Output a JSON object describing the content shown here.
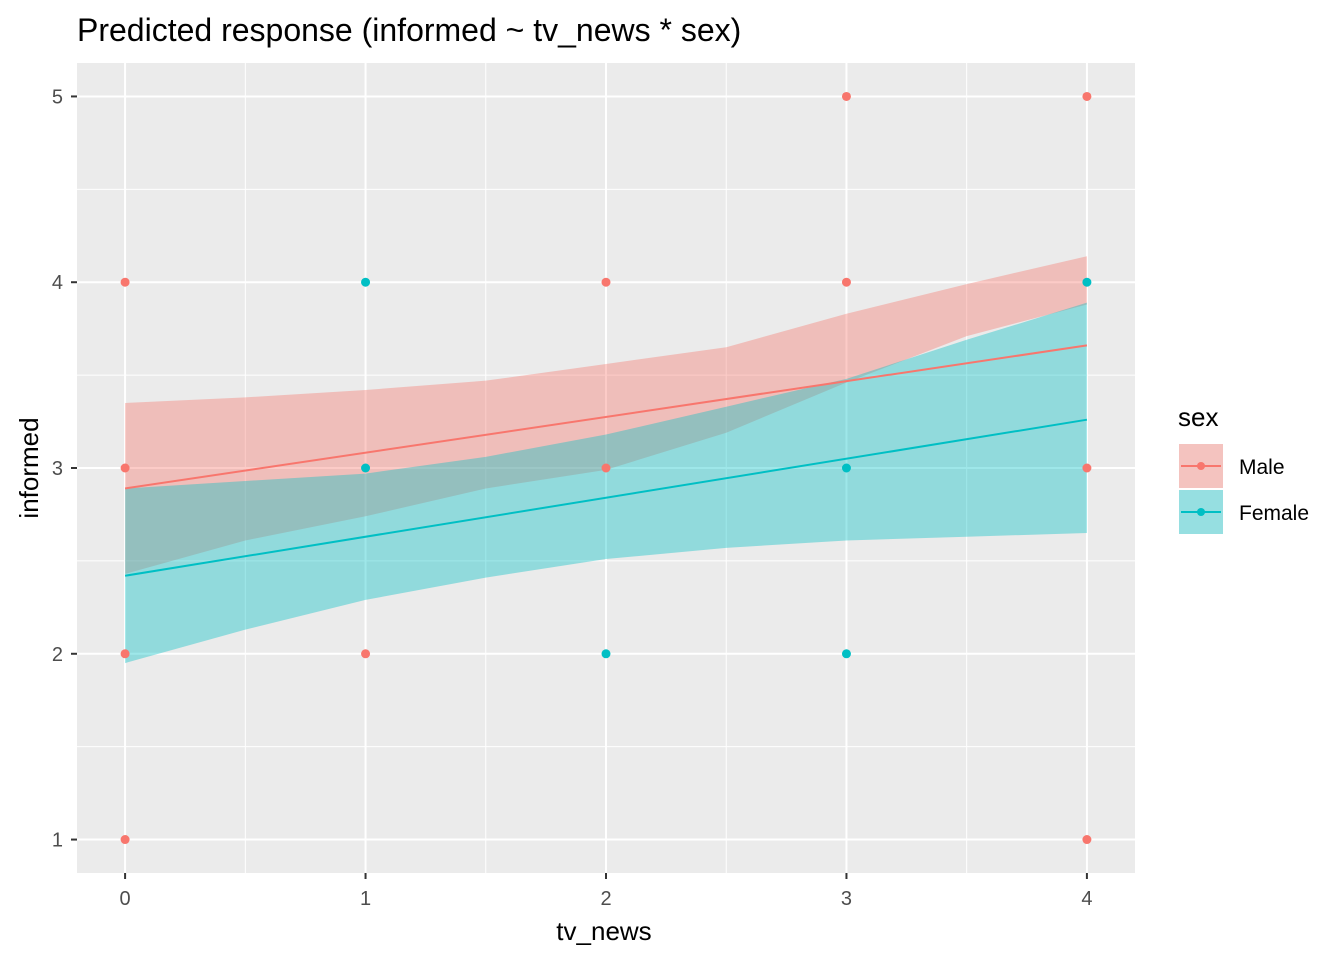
{
  "chart_data": {
    "type": "line",
    "title": "Predicted response (informed ~ tv_news * sex)",
    "xlabel": "tv_news",
    "ylabel": "informed",
    "xlim": [
      -0.2,
      4.2
    ],
    "ylim": [
      0.82,
      5.18
    ],
    "x_ticks": [
      0,
      1,
      2,
      3,
      4
    ],
    "x_tick_labels": [
      "0",
      "1",
      "2",
      "3",
      "4"
    ],
    "y_ticks": [
      1,
      2,
      3,
      4,
      5
    ],
    "y_tick_labels": [
      "1",
      "2",
      "3",
      "4",
      "5"
    ],
    "grid": true,
    "legend": {
      "title": "sex",
      "placement": "right"
    },
    "series": [
      {
        "name": "Male",
        "color": "#F8766D",
        "line": {
          "x": [
            0,
            4
          ],
          "y": [
            2.89,
            3.66
          ]
        },
        "ribbon": {
          "x": [
            0,
            0.5,
            1,
            1.5,
            2,
            2.5,
            3,
            3.5,
            4
          ],
          "lower": [
            2.43,
            2.61,
            2.74,
            2.89,
            2.99,
            3.19,
            3.46,
            3.71,
            3.88
          ],
          "upper": [
            3.35,
            3.38,
            3.42,
            3.47,
            3.56,
            3.65,
            3.83,
            3.99,
            4.14
          ]
        },
        "points": [
          [
            0,
            4
          ],
          [
            0,
            3
          ],
          [
            0,
            2
          ],
          [
            0,
            1
          ],
          [
            1,
            2
          ],
          [
            2,
            4
          ],
          [
            2,
            3
          ],
          [
            3,
            5
          ],
          [
            3,
            4
          ],
          [
            4,
            5
          ],
          [
            4,
            3
          ],
          [
            4,
            1
          ]
        ]
      },
      {
        "name": "Female",
        "color": "#00BFC4",
        "line": {
          "x": [
            0,
            4
          ],
          "y": [
            2.42,
            3.26
          ]
        },
        "ribbon": {
          "x": [
            0,
            0.5,
            1,
            1.5,
            2,
            2.5,
            3,
            3.5,
            4
          ],
          "lower": [
            1.95,
            2.13,
            2.29,
            2.41,
            2.51,
            2.57,
            2.61,
            2.63,
            2.65
          ],
          "upper": [
            2.89,
            2.93,
            2.97,
            3.06,
            3.18,
            3.33,
            3.48,
            3.69,
            3.89
          ]
        },
        "points": [
          [
            1,
            4
          ],
          [
            1,
            3
          ],
          [
            2,
            2
          ],
          [
            3,
            3
          ],
          [
            3,
            2
          ],
          [
            4,
            4
          ]
        ]
      }
    ]
  }
}
